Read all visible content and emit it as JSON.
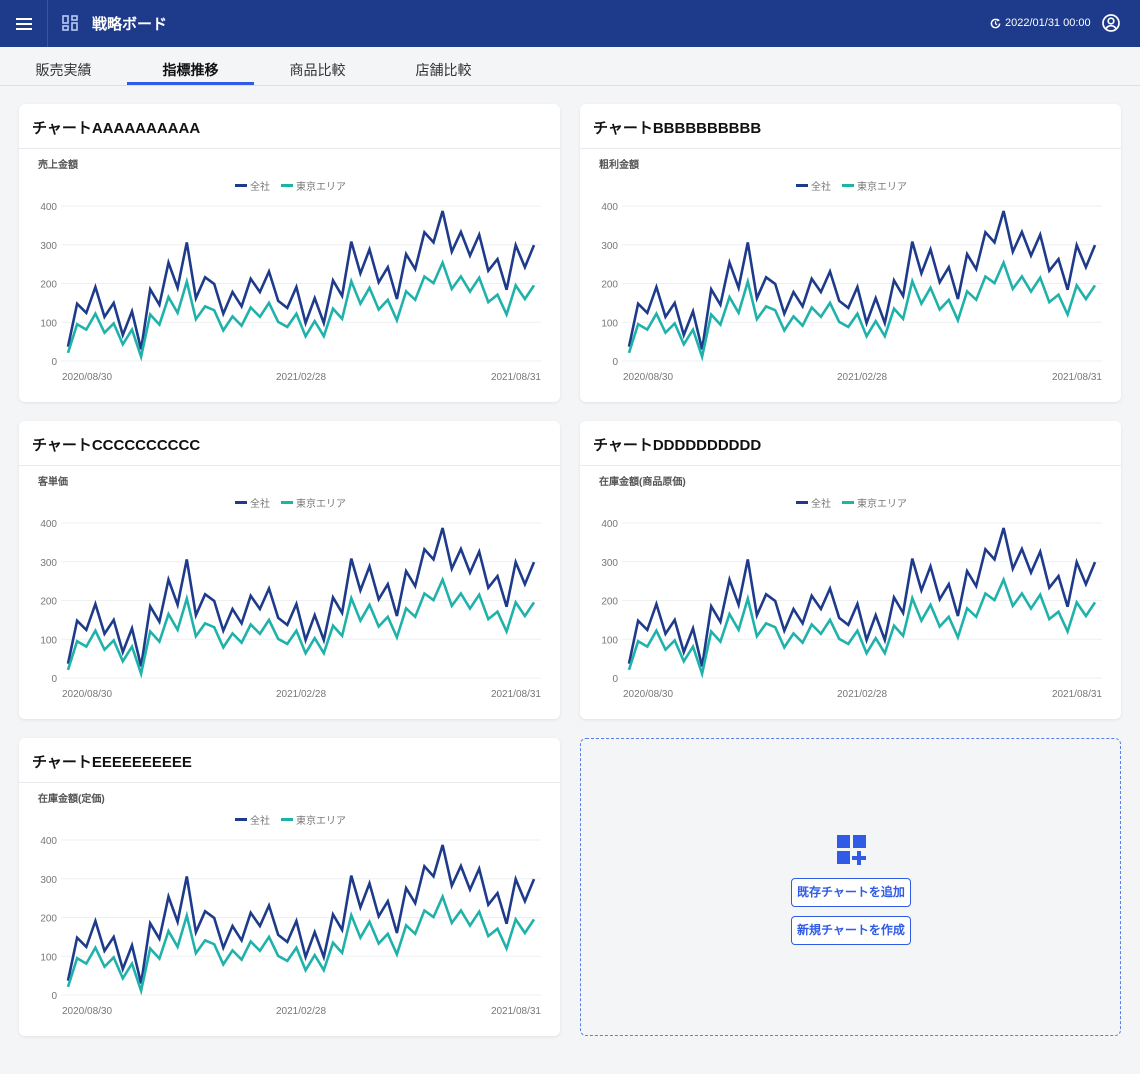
{
  "header": {
    "title": "戦略ボード",
    "updated": "2022/01/31 00:00"
  },
  "tabs": [
    {
      "label": "販売実績"
    },
    {
      "label": "指標推移",
      "active": true
    },
    {
      "label": "商品比較"
    },
    {
      "label": "店舗比較"
    }
  ],
  "colors": {
    "header": "#1e3a8a",
    "accent": "#2f5be6",
    "series_all": "#1e3a8a",
    "series_tokyo": "#20b2aa"
  },
  "add_panel": {
    "add_existing": "既存チャートを追加",
    "create_new": "新規チャートを作成"
  },
  "chart_data": [
    {
      "type": "line",
      "title": "チャートAAAAAAAAAA",
      "ylabel": "売上金額",
      "ylim": [
        0,
        400
      ],
      "yticks": [
        0,
        100,
        200,
        300,
        400
      ],
      "xticks": [
        "2020/08/30",
        "2021/02/28",
        "2021/08/31"
      ],
      "legend": "top-center",
      "grid": true,
      "series": [
        {
          "name": "全社",
          "values": [
            37,
            148,
            124,
            191,
            114,
            150,
            67,
            128,
            30,
            185,
            145,
            254,
            189,
            306,
            162,
            216,
            199,
            122,
            178,
            141,
            212,
            178,
            231,
            155,
            137,
            191,
            98,
            162,
            98,
            208,
            168,
            308,
            226,
            288,
            203,
            242,
            160,
            276,
            237,
            332,
            306,
            387,
            282,
            333,
            272,
            326,
            233,
            263,
            184,
            299,
            242,
            299
          ]
        },
        {
          "name": "東京エリア",
          "values": [
            21,
            95,
            81,
            122,
            73,
            97,
            43,
            81,
            11,
            120,
            94,
            165,
            124,
            205,
            108,
            141,
            131,
            79,
            115,
            91,
            138,
            114,
            150,
            101,
            88,
            122,
            64,
            103,
            64,
            135,
            109,
            206,
            148,
            189,
            133,
            158,
            105,
            180,
            158,
            218,
            201,
            254,
            186,
            218,
            179,
            215,
            152,
            171,
            120,
            195,
            160,
            195
          ]
        }
      ]
    },
    {
      "type": "line",
      "title": "チャートBBBBBBBBBB",
      "ylabel": "粗利金額",
      "ylim": [
        0,
        400
      ],
      "yticks": [
        0,
        100,
        200,
        300,
        400
      ],
      "xticks": [
        "2020/08/30",
        "2021/02/28",
        "2021/08/31"
      ],
      "legend": "top-center",
      "grid": true,
      "series": [
        {
          "name": "全社",
          "values": [
            37,
            148,
            124,
            191,
            114,
            150,
            67,
            128,
            30,
            185,
            145,
            254,
            189,
            306,
            162,
            216,
            199,
            122,
            178,
            141,
            212,
            178,
            231,
            155,
            137,
            191,
            98,
            162,
            98,
            208,
            168,
            308,
            226,
            288,
            203,
            242,
            160,
            276,
            237,
            332,
            306,
            387,
            282,
            333,
            272,
            326,
            233,
            263,
            184,
            299,
            242,
            299
          ]
        },
        {
          "name": "東京エリア",
          "values": [
            21,
            95,
            81,
            122,
            73,
            97,
            43,
            81,
            11,
            120,
            94,
            165,
            124,
            205,
            108,
            141,
            131,
            79,
            115,
            91,
            138,
            114,
            150,
            101,
            88,
            122,
            64,
            103,
            64,
            135,
            109,
            206,
            148,
            189,
            133,
            158,
            105,
            180,
            158,
            218,
            201,
            254,
            186,
            218,
            179,
            215,
            152,
            171,
            120,
            195,
            160,
            195
          ]
        }
      ]
    },
    {
      "type": "line",
      "title": "チャートCCCCCCCCCC",
      "ylabel": "客単価",
      "ylim": [
        0,
        400
      ],
      "yticks": [
        0,
        100,
        200,
        300,
        400
      ],
      "xticks": [
        "2020/08/30",
        "2021/02/28",
        "2021/08/31"
      ],
      "legend": "top-center",
      "grid": true,
      "series": [
        {
          "name": "全社",
          "values": [
            37,
            148,
            124,
            191,
            114,
            150,
            67,
            128,
            30,
            185,
            145,
            254,
            189,
            306,
            162,
            216,
            199,
            122,
            178,
            141,
            212,
            178,
            231,
            155,
            137,
            191,
            98,
            162,
            98,
            208,
            168,
            308,
            226,
            288,
            203,
            242,
            160,
            276,
            237,
            332,
            306,
            387,
            282,
            333,
            272,
            326,
            233,
            263,
            184,
            299,
            242,
            299
          ]
        },
        {
          "name": "東京エリア",
          "values": [
            21,
            95,
            81,
            122,
            73,
            97,
            43,
            81,
            11,
            120,
            94,
            165,
            124,
            205,
            108,
            141,
            131,
            79,
            115,
            91,
            138,
            114,
            150,
            101,
            88,
            122,
            64,
            103,
            64,
            135,
            109,
            206,
            148,
            189,
            133,
            158,
            105,
            180,
            158,
            218,
            201,
            254,
            186,
            218,
            179,
            215,
            152,
            171,
            120,
            195,
            160,
            195
          ]
        }
      ]
    },
    {
      "type": "line",
      "title": "チャートDDDDDDDDDD",
      "ylabel": "在庫金額(商品原価)",
      "ylim": [
        0,
        400
      ],
      "yticks": [
        0,
        100,
        200,
        300,
        400
      ],
      "xticks": [
        "2020/08/30",
        "2021/02/28",
        "2021/08/31"
      ],
      "legend": "top-center",
      "grid": true,
      "series": [
        {
          "name": "全社",
          "values": [
            37,
            148,
            124,
            191,
            114,
            150,
            67,
            128,
            30,
            185,
            145,
            254,
            189,
            306,
            162,
            216,
            199,
            122,
            178,
            141,
            212,
            178,
            231,
            155,
            137,
            191,
            98,
            162,
            98,
            208,
            168,
            308,
            226,
            288,
            203,
            242,
            160,
            276,
            237,
            332,
            306,
            387,
            282,
            333,
            272,
            326,
            233,
            263,
            184,
            299,
            242,
            299
          ]
        },
        {
          "name": "東京エリア",
          "values": [
            21,
            95,
            81,
            122,
            73,
            97,
            43,
            81,
            11,
            120,
            94,
            165,
            124,
            205,
            108,
            141,
            131,
            79,
            115,
            91,
            138,
            114,
            150,
            101,
            88,
            122,
            64,
            103,
            64,
            135,
            109,
            206,
            148,
            189,
            133,
            158,
            105,
            180,
            158,
            218,
            201,
            254,
            186,
            218,
            179,
            215,
            152,
            171,
            120,
            195,
            160,
            195
          ]
        }
      ]
    },
    {
      "type": "line",
      "title": "チャートEEEEEEEEEE",
      "ylabel": "在庫金額(定価)",
      "ylim": [
        0,
        400
      ],
      "yticks": [
        0,
        100,
        200,
        300,
        400
      ],
      "xticks": [
        "2020/08/30",
        "2021/02/28",
        "2021/08/31"
      ],
      "legend": "top-center",
      "grid": true,
      "series": [
        {
          "name": "全社",
          "values": [
            37,
            148,
            124,
            191,
            114,
            150,
            67,
            128,
            30,
            185,
            145,
            254,
            189,
            306,
            162,
            216,
            199,
            122,
            178,
            141,
            212,
            178,
            231,
            155,
            137,
            191,
            98,
            162,
            98,
            208,
            168,
            308,
            226,
            288,
            203,
            242,
            160,
            276,
            237,
            332,
            306,
            387,
            282,
            333,
            272,
            326,
            233,
            263,
            184,
            299,
            242,
            299
          ]
        },
        {
          "name": "東京エリア",
          "values": [
            21,
            95,
            81,
            122,
            73,
            97,
            43,
            81,
            11,
            120,
            94,
            165,
            124,
            205,
            108,
            141,
            131,
            79,
            115,
            91,
            138,
            114,
            150,
            101,
            88,
            122,
            64,
            103,
            64,
            135,
            109,
            206,
            148,
            189,
            133,
            158,
            105,
            180,
            158,
            218,
            201,
            254,
            186,
            218,
            179,
            215,
            152,
            171,
            120,
            195,
            160,
            195
          ]
        }
      ]
    }
  ]
}
